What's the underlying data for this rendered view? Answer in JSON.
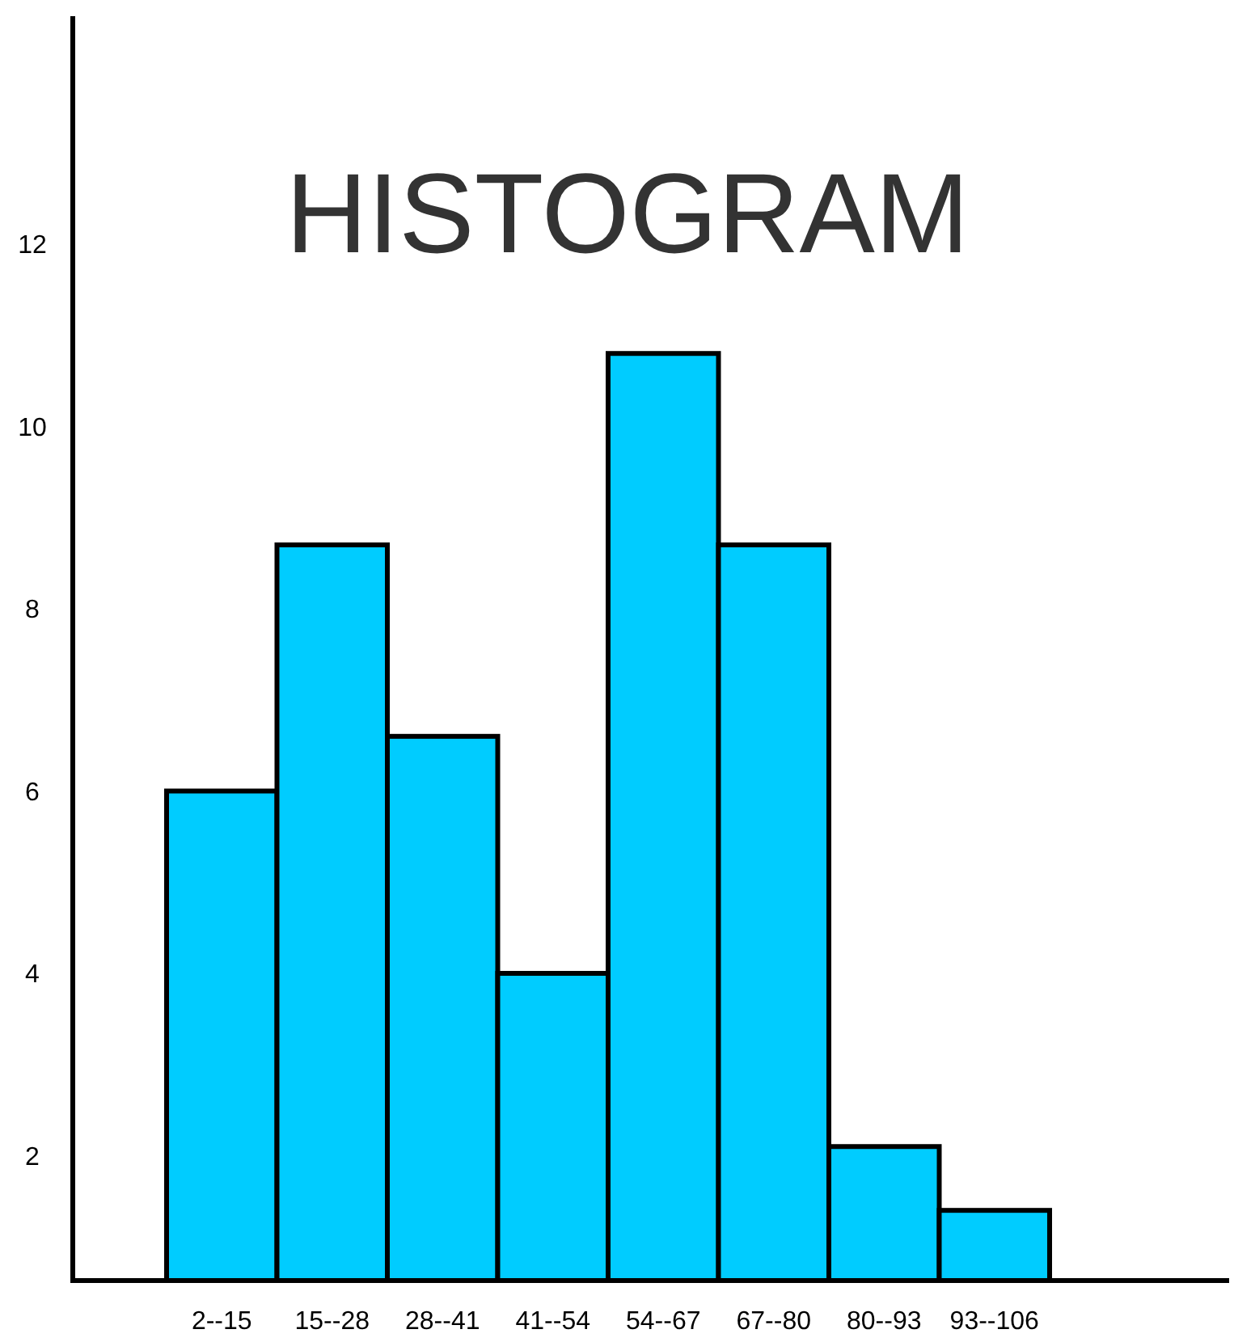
{
  "chart_data": {
    "type": "bar",
    "title": "HISTOGRAM",
    "categories": [
      "2--15",
      "15--28",
      "28--41",
      "41--54",
      "54--67",
      "67--80",
      "80--93",
      "93--106"
    ],
    "values": [
      6,
      8.7,
      6.6,
      4,
      10.8,
      8.7,
      2.1,
      1.4
    ],
    "color": "#00ccff",
    "ylim": [
      0.63,
      14.5
    ],
    "yticks": [
      2,
      4,
      6,
      8,
      10,
      12
    ],
    "grid": false
  }
}
